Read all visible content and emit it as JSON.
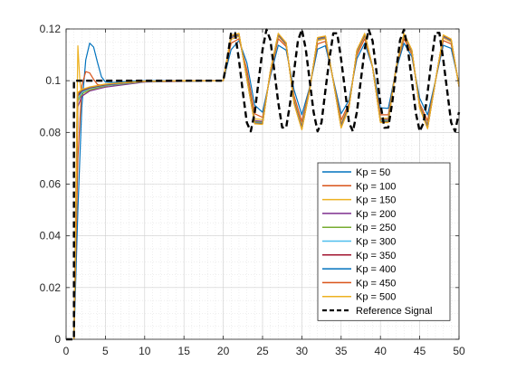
{
  "chart_data": {
    "type": "line",
    "title": "",
    "xlabel": "",
    "ylabel": "",
    "xlim": [
      0,
      50
    ],
    "ylim": [
      0,
      0.12
    ],
    "xticks": [
      0,
      5,
      10,
      15,
      20,
      25,
      30,
      35,
      40,
      45,
      50
    ],
    "yticks": [
      0,
      0.02,
      0.04,
      0.06,
      0.08,
      0.1,
      0.12
    ],
    "xtick_labels": [
      "0",
      "5",
      "10",
      "15",
      "20",
      "25",
      "30",
      "35",
      "40",
      "45",
      "50"
    ],
    "ytick_labels": [
      "0",
      "0.02",
      "0.04",
      "0.06",
      "0.08",
      "0.1",
      "0.12"
    ],
    "grid": true,
    "minor_grid": true,
    "legend_position": "bottom-right",
    "reference": {
      "name": "Reference Signal",
      "color": "#000000",
      "x": [
        0,
        1,
        1,
        20,
        20.5,
        21,
        21.5,
        22,
        22.5,
        23,
        23.5,
        24,
        24.5,
        25,
        25.5,
        26,
        26.5,
        27,
        27.5,
        28,
        28.5,
        29,
        29.5,
        30,
        30.5,
        31,
        31.5,
        32,
        32.5,
        33,
        33.5,
        34,
        34.5,
        35,
        35.5,
        36,
        36.5,
        37,
        37.5,
        38,
        38.5,
        39,
        39.5,
        40,
        40.5,
        41,
        41.5,
        42,
        42.5,
        43,
        43.5,
        44,
        44.5,
        45,
        45.5,
        46,
        46.5,
        47,
        47.5,
        48,
        48.5,
        49,
        49.5,
        50
      ],
      "y": [
        0,
        0,
        0.1,
        0.1,
        0.108,
        0.1185,
        0.1185,
        0.108,
        0.0954,
        0.0838,
        0.0804,
        0.0876,
        0.1,
        0.112,
        0.1198,
        0.1157,
        0.1037,
        0.0915,
        0.0819,
        0.0818,
        0.0911,
        0.1034,
        0.1154,
        0.1198,
        0.1122,
        0.1,
        0.0878,
        0.0804,
        0.0838,
        0.0963,
        0.1082,
        0.1183,
        0.1183,
        0.1082,
        0.0963,
        0.0838,
        0.0804,
        0.0878,
        0.1,
        0.1122,
        0.1198,
        0.1154,
        0.1034,
        0.0911,
        0.0818,
        0.0819,
        0.0915,
        0.1037,
        0.1157,
        0.1198,
        0.112,
        0.1,
        0.0876,
        0.0804,
        0.0838,
        0.0954,
        0.108,
        0.1185,
        0.1185,
        0.108,
        0.096,
        0.0838,
        0.0804,
        0.0878
      ]
    },
    "series": [
      {
        "name": "Kp = 50",
        "color": "#0072BD",
        "x": [
          1,
          1.5,
          2,
          2.5,
          3,
          3.5,
          4,
          4.5,
          5,
          6,
          8,
          10,
          15,
          20,
          21,
          22,
          23,
          24,
          25,
          26,
          27,
          28,
          29,
          30,
          31,
          32,
          33,
          34,
          35,
          36,
          37,
          38,
          39,
          40,
          41,
          42,
          43,
          44,
          45,
          46,
          47,
          48,
          49,
          50
        ],
        "y": [
          0,
          0.05,
          0.09,
          0.108,
          0.1145,
          0.113,
          0.107,
          0.1015,
          0.0995,
          0.0993,
          0.0997,
          0.1,
          0.1,
          0.1,
          0.112,
          0.1155,
          0.107,
          0.0905,
          0.0878,
          0.1018,
          0.1137,
          0.1118,
          0.0965,
          0.0868,
          0.0975,
          0.1122,
          0.1135,
          0.1005,
          0.0872,
          0.0925,
          0.1085,
          0.1145,
          0.1052,
          0.0895,
          0.0893,
          0.1042,
          0.1145,
          0.1092,
          0.0932,
          0.0868,
          0.1,
          0.1137,
          0.1125,
          0.099
        ]
      },
      {
        "name": "Kp = 100",
        "color": "#D95319",
        "x": [
          1,
          1.5,
          2,
          2.5,
          3,
          3.5,
          4,
          5,
          6,
          8,
          10,
          15,
          20,
          21,
          22,
          23,
          24,
          25,
          26,
          27,
          28,
          29,
          30,
          31,
          32,
          33,
          34,
          35,
          36,
          37,
          38,
          39,
          40,
          41,
          42,
          43,
          44,
          45,
          46,
          47,
          48,
          49,
          50
        ],
        "y": [
          0,
          0.07,
          0.098,
          0.1035,
          0.103,
          0.1005,
          0.0985,
          0.098,
          0.0985,
          0.0993,
          0.0998,
          0.1,
          0.1,
          0.1145,
          0.1162,
          0.1042,
          0.0872,
          0.0858,
          0.1025,
          0.1162,
          0.1132,
          0.0942,
          0.0842,
          0.0972,
          0.1142,
          0.1152,
          0.1002,
          0.0848,
          0.0912,
          0.1098,
          0.1162,
          0.1052,
          0.0868,
          0.0868,
          0.1048,
          0.1162,
          0.1102,
          0.0912,
          0.0845,
          0.0998,
          0.1155,
          0.1142,
          0.0985
        ]
      },
      {
        "name": "Kp = 150",
        "color": "#EDB120",
        "x": [
          1,
          1.25,
          1.5,
          1.75,
          2,
          2.5,
          3,
          4,
          6,
          8,
          10,
          15,
          20,
          21,
          22,
          23,
          24,
          25,
          26,
          27,
          28,
          29,
          30,
          31,
          32,
          33,
          34,
          35,
          36,
          37,
          38,
          39,
          40,
          41,
          42,
          43,
          44,
          45,
          46,
          47,
          48,
          49,
          50
        ],
        "y": [
          0,
          0.06,
          0.1135,
          0.1,
          0.094,
          0.0952,
          0.0962,
          0.0972,
          0.0985,
          0.0992,
          0.0996,
          0.1,
          0.1,
          0.116,
          0.1172,
          0.102,
          0.0852,
          0.085,
          0.1032,
          0.1172,
          0.1138,
          0.0928,
          0.0828,
          0.097,
          0.1155,
          0.1162,
          0.1,
          0.0835,
          0.0905,
          0.1108,
          0.1172,
          0.1052,
          0.0855,
          0.0855,
          0.1052,
          0.1172,
          0.1108,
          0.0905,
          0.0832,
          0.0998,
          0.1165,
          0.115,
          0.0982
        ]
      },
      {
        "name": "Kp = 200",
        "color": "#7E2F8E",
        "x": [
          1,
          1.5,
          2,
          3,
          5,
          10,
          20,
          21,
          22,
          23,
          24,
          25,
          26,
          27,
          28,
          29,
          30,
          31,
          32,
          33,
          34,
          35,
          36,
          37,
          38,
          39,
          40,
          41,
          42,
          43,
          44,
          45,
          46,
          47,
          48,
          49,
          50
        ],
        "y": [
          0,
          0.09,
          0.094,
          0.096,
          0.0975,
          0.0995,
          0.1,
          0.1166,
          0.1176,
          0.1015,
          0.0845,
          0.0843,
          0.1035,
          0.1176,
          0.114,
          0.0922,
          0.0822,
          0.0968,
          0.116,
          0.1166,
          0.0999,
          0.0829,
          0.0902,
          0.1112,
          0.1176,
          0.1052,
          0.085,
          0.085,
          0.1052,
          0.1176,
          0.1112,
          0.0902,
          0.0826,
          0.0998,
          0.117,
          0.1154,
          0.098
        ]
      },
      {
        "name": "Kp = 250",
        "color": "#77AC30",
        "x": [
          1,
          1.5,
          2,
          3,
          5,
          10,
          20,
          21,
          22,
          23,
          24,
          25,
          26,
          27,
          28,
          29,
          30,
          31,
          32,
          33,
          34,
          35,
          36,
          37,
          38,
          39,
          40,
          41,
          42,
          43,
          44,
          45,
          46,
          47,
          48,
          49,
          50
        ],
        "y": [
          0,
          0.092,
          0.095,
          0.0965,
          0.098,
          0.0996,
          0.1,
          0.1169,
          0.1178,
          0.1012,
          0.0841,
          0.0839,
          0.1036,
          0.1178,
          0.1142,
          0.0919,
          0.0818,
          0.0967,
          0.1162,
          0.1168,
          0.0999,
          0.0825,
          0.09,
          0.1114,
          0.1178,
          0.1052,
          0.0846,
          0.0846,
          0.1052,
          0.1178,
          0.1114,
          0.09,
          0.0822,
          0.0998,
          0.1172,
          0.1156,
          0.0979
        ]
      },
      {
        "name": "Kp = 300",
        "color": "#4DBEEE",
        "x": [
          1,
          1.5,
          2,
          3,
          5,
          10,
          20,
          21,
          22,
          23,
          24,
          25,
          26,
          27,
          28,
          29,
          30,
          31,
          32,
          33,
          34,
          35,
          36,
          37,
          38,
          39,
          40,
          41,
          42,
          43,
          44,
          45,
          46,
          47,
          48,
          49,
          50
        ],
        "y": [
          0,
          0.093,
          0.0955,
          0.097,
          0.0982,
          0.0996,
          0.1,
          0.1171,
          0.1179,
          0.101,
          0.0838,
          0.0836,
          0.1037,
          0.1179,
          0.1143,
          0.0917,
          0.0815,
          0.0966,
          0.1163,
          0.1169,
          0.0999,
          0.0822,
          0.0898,
          0.1115,
          0.1179,
          0.1052,
          0.0843,
          0.0843,
          0.1052,
          0.1179,
          0.1115,
          0.0898,
          0.0819,
          0.0998,
          0.1173,
          0.1157,
          0.0979
        ]
      },
      {
        "name": "Kp = 350",
        "color": "#A2142F",
        "x": [
          1,
          1.5,
          2,
          3,
          5,
          10,
          20,
          21,
          22,
          23,
          24,
          25,
          26,
          27,
          28,
          29,
          30,
          31,
          32,
          33,
          34,
          35,
          36,
          37,
          38,
          39,
          40,
          41,
          42,
          43,
          44,
          45,
          46,
          47,
          48,
          49,
          50
        ],
        "y": [
          0,
          0.094,
          0.096,
          0.0972,
          0.0984,
          0.0997,
          0.1,
          0.1172,
          0.118,
          0.1009,
          0.0836,
          0.0834,
          0.1038,
          0.118,
          0.1144,
          0.0915,
          0.0813,
          0.0965,
          0.1164,
          0.117,
          0.0999,
          0.082,
          0.0897,
          0.1116,
          0.118,
          0.1052,
          0.0841,
          0.0841,
          0.1052,
          0.118,
          0.1116,
          0.0897,
          0.0817,
          0.0998,
          0.1174,
          0.1158,
          0.0978
        ]
      },
      {
        "name": "Kp = 400",
        "color": "#0072BD",
        "x": [
          1,
          1.5,
          2,
          3,
          5,
          10,
          20,
          21,
          22,
          23,
          24,
          25,
          26,
          27,
          28,
          29,
          30,
          31,
          32,
          33,
          34,
          35,
          36,
          37,
          38,
          39,
          40,
          41,
          42,
          43,
          44,
          45,
          46,
          47,
          48,
          49,
          50
        ],
        "y": [
          0,
          0.0945,
          0.0962,
          0.0974,
          0.0985,
          0.0997,
          0.1,
          0.1173,
          0.1181,
          0.1008,
          0.0835,
          0.0833,
          0.1038,
          0.1181,
          0.1145,
          0.0914,
          0.0812,
          0.0965,
          0.1165,
          0.1171,
          0.0999,
          0.0819,
          0.0896,
          0.1117,
          0.1181,
          0.1052,
          0.084,
          0.084,
          0.1052,
          0.1181,
          0.1117,
          0.0896,
          0.0816,
          0.0998,
          0.1175,
          0.1159,
          0.0978
        ]
      },
      {
        "name": "Kp = 450",
        "color": "#D95319",
        "x": [
          1,
          1.5,
          2,
          3,
          5,
          10,
          20,
          21,
          22,
          23,
          24,
          25,
          26,
          27,
          28,
          29,
          30,
          31,
          32,
          33,
          34,
          35,
          36,
          37,
          38,
          39,
          40,
          41,
          42,
          43,
          44,
          45,
          46,
          47,
          48,
          49,
          50
        ],
        "y": [
          0,
          0.095,
          0.0964,
          0.0975,
          0.0986,
          0.0997,
          0.1,
          0.1174,
          0.1182,
          0.1007,
          0.0834,
          0.0832,
          0.1039,
          0.1182,
          0.1146,
          0.0913,
          0.0811,
          0.0964,
          0.1166,
          0.1172,
          0.0999,
          0.0818,
          0.0895,
          0.1118,
          0.1182,
          0.1052,
          0.0839,
          0.0839,
          0.1052,
          0.1182,
          0.1118,
          0.0895,
          0.0815,
          0.0998,
          0.1176,
          0.116,
          0.0977
        ]
      },
      {
        "name": "Kp = 500",
        "color": "#EDB120",
        "x": [
          1,
          1.5,
          2,
          3,
          5,
          10,
          20,
          21,
          22,
          23,
          24,
          25,
          26,
          27,
          28,
          29,
          30,
          31,
          32,
          33,
          34,
          35,
          36,
          37,
          38,
          39,
          40,
          41,
          42,
          43,
          44,
          45,
          46,
          47,
          48,
          49,
          50
        ],
        "y": [
          0,
          0.0955,
          0.0966,
          0.0976,
          0.0987,
          0.0998,
          0.1,
          0.1175,
          0.1183,
          0.1006,
          0.0833,
          0.0831,
          0.1039,
          0.1183,
          0.1147,
          0.0912,
          0.081,
          0.0964,
          0.1167,
          0.1173,
          0.0999,
          0.0817,
          0.0894,
          0.1119,
          0.1183,
          0.1052,
          0.0838,
          0.0838,
          0.1052,
          0.1183,
          0.1119,
          0.0894,
          0.0814,
          0.0998,
          0.1177,
          0.1161,
          0.0977
        ]
      }
    ]
  }
}
